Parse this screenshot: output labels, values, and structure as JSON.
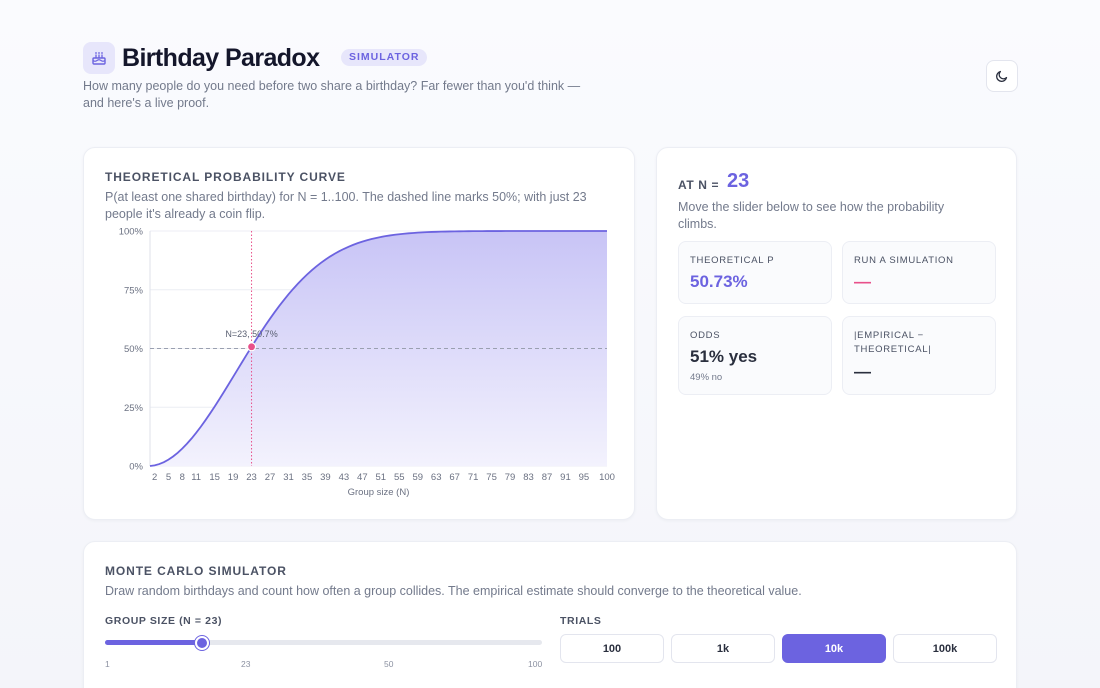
{
  "header": {
    "title": "Birthday Paradox",
    "badge": "SIMULATOR",
    "subtitle": "How many people do you need before two share a birthday? Far fewer than you'd think — and here's a live proof.",
    "logo_icon": "cake-icon",
    "theme_icon": "moon-icon"
  },
  "chart_card": {
    "title": "THEORETICAL PROBABILITY CURVE",
    "description": "P(at least one shared birthday) for N = 1..100. The dashed line marks 50%; with just 23 people it's already a coin flip."
  },
  "chart_data": {
    "type": "area",
    "title": "THEORETICAL PROBABILITY CURVE",
    "xlabel": "Group size (N)",
    "ylabel": "",
    "xlim": [
      1,
      100
    ],
    "ylim": [
      0,
      1
    ],
    "y_ticks": [
      "0%",
      "25%",
      "50%",
      "75%",
      "100%"
    ],
    "x_ticks": [
      2,
      5,
      8,
      11,
      15,
      19,
      23,
      27,
      31,
      35,
      39,
      43,
      47,
      51,
      55,
      59,
      63,
      67,
      71,
      75,
      79,
      83,
      87,
      91,
      95,
      100
    ],
    "reference_line": {
      "y": 0.5,
      "style": "dashed"
    },
    "marker": {
      "x": 23,
      "y": 0.5073,
      "label": "N=23, 50.7%"
    },
    "series": [
      {
        "formula": "1 - prod_{k=0}^{N-1} (365-k)/365",
        "color": "#6c63e0"
      }
    ],
    "grid": true
  },
  "stats": {
    "at_n_label": "AT N =",
    "at_n_value": "23",
    "description": "Move the slider below to see how the probability climbs.",
    "tiles": [
      {
        "label": "THEORETICAL P",
        "value": "50.73%",
        "value_color": "#6c63e0"
      },
      {
        "label": "RUN A SIMULATION",
        "value": "—",
        "value_color": "#e8508a"
      },
      {
        "label": "ODDS",
        "value": "51% yes",
        "sub": "49% no",
        "value_color": "#2a2f3e"
      },
      {
        "label": "|EMPIRICAL − THEORETICAL|",
        "value": "—",
        "value_color": "#2a2f3e"
      }
    ]
  },
  "monte_carlo": {
    "title": "MONTE CARLO SIMULATOR",
    "description": "Draw random birthdays and count how often a group collides. The empirical estimate should converge to the theoretical value.",
    "slider_label": "GROUP SIZE (N = 23)",
    "slider": {
      "min": 1,
      "max": 100,
      "value": 23,
      "ticks": [
        "1",
        "23",
        "50",
        "100"
      ]
    },
    "trials_label": "TRIALS",
    "trials": [
      {
        "label": "100",
        "active": false
      },
      {
        "label": "1k",
        "active": false
      },
      {
        "label": "10k",
        "active": true
      },
      {
        "label": "100k",
        "active": false
      }
    ]
  },
  "colors": {
    "accent": "#6c63e0",
    "marker": "#e8508a"
  }
}
